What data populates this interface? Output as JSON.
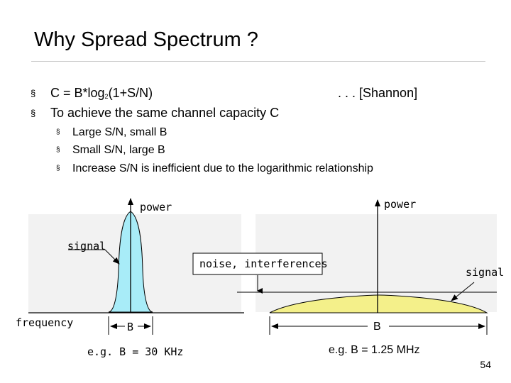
{
  "slide": {
    "title": "Why Spread Spectrum ?",
    "bullets": [
      {
        "text": "C = B*log",
        "subscript": "2",
        "text_after": "(1+S/N)",
        "note": ". . . [Shannon]"
      },
      {
        "text": "To achieve the same channel capacity C"
      }
    ],
    "sub_bullets": [
      "Large S/N, small B",
      "Small S/N, large B",
      "Increase S/N is inefficient due to the logarithmic relationship"
    ],
    "bullet_marker": "§",
    "page_number": "54"
  },
  "diagram": {
    "left": {
      "power_label": "power",
      "signal_label": "signal",
      "frequency_label": "frequency",
      "bandwidth_label": "B",
      "example": "e.g. B = 30 KHz"
    },
    "right": {
      "power_label": "power",
      "noise_label": "noise, interferences",
      "signal_label": "signal",
      "bandwidth_label": "B",
      "example": "e.g. B = 1.25 MHz"
    },
    "colors": {
      "narrowband_fill": "#a8ecf8",
      "spread_fill": "#f4f08a",
      "plot_background": "#f2f2f2"
    }
  }
}
